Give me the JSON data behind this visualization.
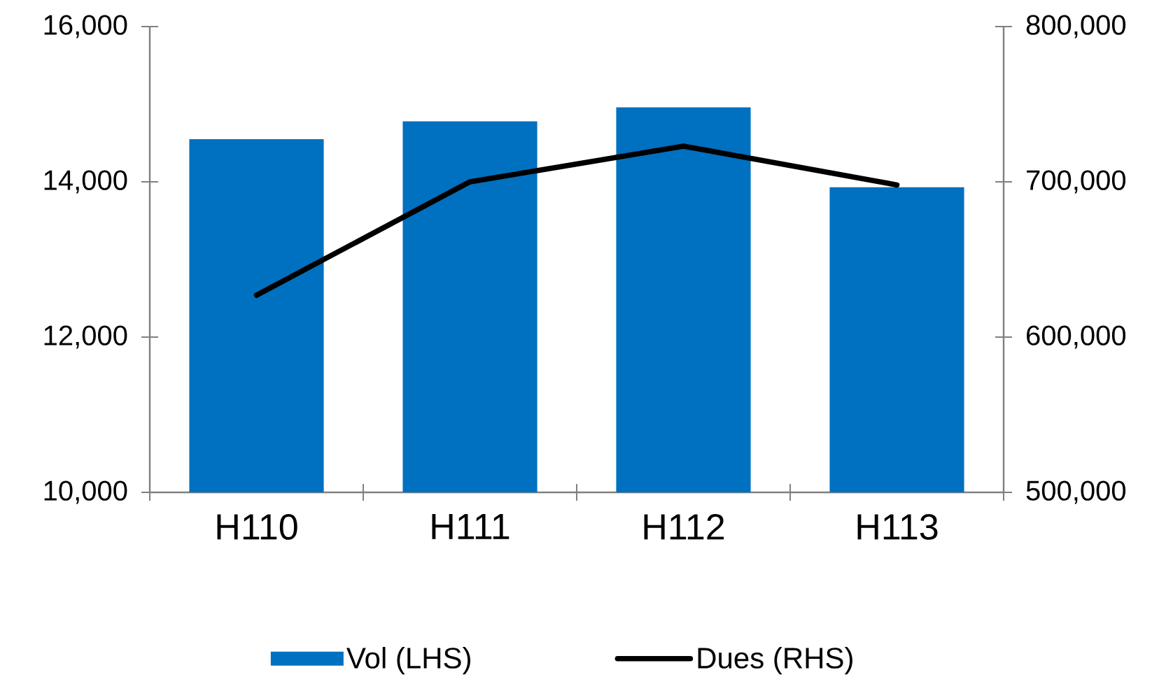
{
  "chart_data": {
    "type": "bar",
    "categories": [
      "H110",
      "H111",
      "H112",
      "H113"
    ],
    "series": [
      {
        "name": "Vol (LHS)",
        "color": "#0070c0",
        "values": [
          14550,
          14780,
          14960,
          13930
        ]
      },
      {
        "name": "Dues (RHS)",
        "type": "line",
        "axis": "y2",
        "color": "#000000",
        "values": [
          627000,
          700000,
          723000,
          698000
        ]
      }
    ],
    "ylim": [
      10000,
      16000
    ],
    "yticks": [
      {
        "value": 10000,
        "label": "10,000"
      },
      {
        "value": 12000,
        "label": "12,000"
      },
      {
        "value": 14000,
        "label": "14,000"
      },
      {
        "value": 16000,
        "label": "16,000"
      }
    ],
    "y2lim": [
      500000,
      800000
    ],
    "y2ticks": [
      {
        "value": 500000,
        "label": "500,000"
      },
      {
        "value": 600000,
        "label": "600,000"
      },
      {
        "value": 700000,
        "label": "700,000"
      },
      {
        "value": 800000,
        "label": "800,000"
      }
    ],
    "legend": "bottom"
  }
}
